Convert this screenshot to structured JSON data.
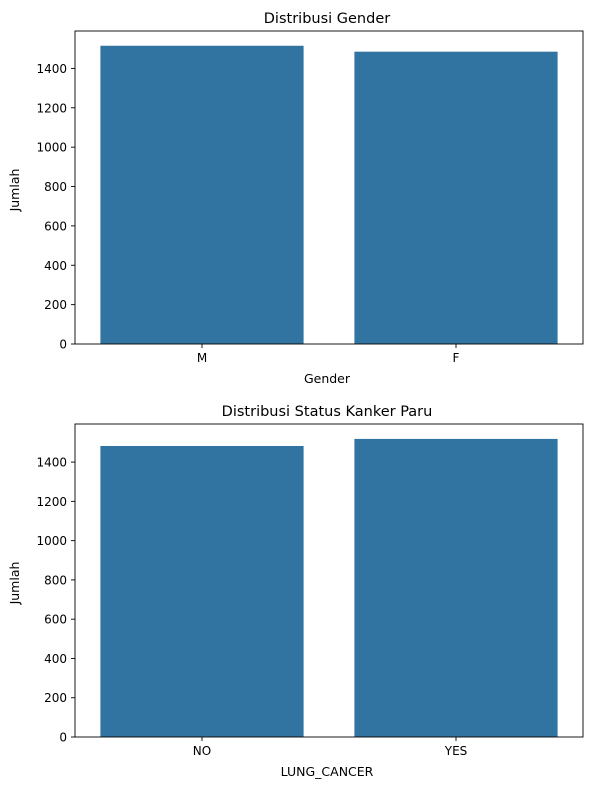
{
  "chart_data": [
    {
      "type": "bar",
      "title": "Distribusi Gender",
      "xlabel": "Gender",
      "ylabel": "Jumlah",
      "categories": [
        "M",
        "F"
      ],
      "values": [
        1515,
        1485
      ],
      "ylim": [
        0,
        1590
      ],
      "yticks": [
        0,
        200,
        400,
        600,
        800,
        1000,
        1200,
        1400
      ],
      "bar_color": "#3274a1",
      "grid": false
    },
    {
      "type": "bar",
      "title": "Distribusi Status Kanker Paru",
      "xlabel": "LUNG_CANCER",
      "ylabel": "Jumlah",
      "categories": [
        "NO",
        "YES"
      ],
      "values": [
        1482,
        1518
      ],
      "ylim": [
        0,
        1594
      ],
      "yticks": [
        0,
        200,
        400,
        600,
        800,
        1000,
        1200,
        1400
      ],
      "bar_color": "#3274a1",
      "grid": false
    }
  ]
}
